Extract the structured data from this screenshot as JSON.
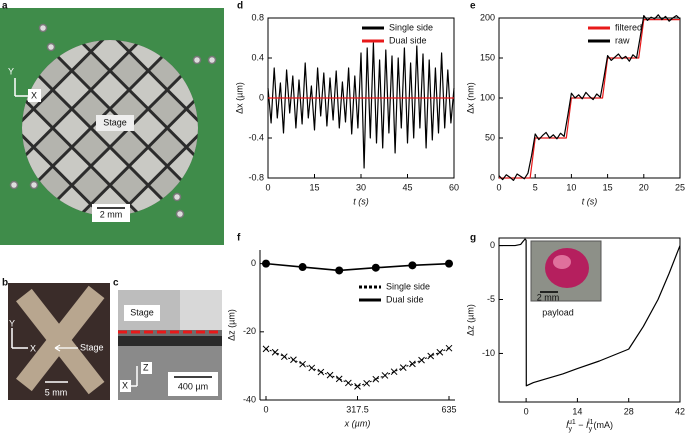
{
  "panel_labels": [
    "a",
    "b",
    "c",
    "d",
    "e",
    "f",
    "g"
  ],
  "photos": {
    "a": {
      "axis_y": "Y",
      "axis_x": "X",
      "stage": "Stage",
      "scale": "2 mm"
    },
    "b": {
      "axis_y": "Y",
      "axis_x": "X",
      "stage": "Stage",
      "scale": "5 mm"
    },
    "c": {
      "stage": "Stage",
      "axis_z": "Z",
      "axis_x": "X",
      "scale": "400 µm"
    },
    "g_inset": {
      "scale": "2 mm",
      "caption": "payload"
    }
  },
  "chart_data": [
    {
      "type": "line",
      "xlabel": "t (s)",
      "ylabel": "Δx (µm)",
      "spines": "box",
      "legend": "upper right",
      "xlim": [
        0,
        60
      ],
      "ylim": [
        -0.8,
        0.8
      ],
      "xticks": [
        0,
        15,
        30,
        45,
        60
      ],
      "yticks": [
        -0.8,
        -0.4,
        0,
        0.4,
        0.8
      ],
      "series": [
        {
          "name": "Single side",
          "color": "#000000",
          "x": [
            0,
            1,
            2,
            3,
            4,
            5,
            6,
            7,
            8,
            9,
            10,
            11,
            12,
            13,
            14,
            15,
            16,
            17,
            18,
            19,
            20,
            21,
            22,
            23,
            24,
            25,
            26,
            27,
            28,
            29,
            30,
            31,
            32,
            33,
            34,
            35,
            36,
            37,
            38,
            39,
            40,
            41,
            42,
            43,
            44,
            45,
            46,
            47,
            48,
            49,
            50,
            51,
            52,
            53,
            54,
            55,
            56,
            57,
            58,
            59,
            60
          ],
          "values": [
            0.1,
            -0.25,
            0.3,
            -0.2,
            0.15,
            -0.35,
            0.28,
            -0.15,
            0.22,
            -0.3,
            0.18,
            -0.26,
            0.35,
            -0.2,
            0.12,
            -0.32,
            0.3,
            -0.18,
            0.25,
            -0.28,
            0.2,
            -0.22,
            0.27,
            -0.3,
            0.16,
            -0.24,
            0.3,
            -0.36,
            0.22,
            -0.3,
            0.45,
            -0.7,
            0.5,
            -0.4,
            0.55,
            -0.45,
            0.38,
            -0.5,
            0.48,
            -0.35,
            0.42,
            -0.55,
            0.4,
            -0.3,
            0.5,
            -0.45,
            0.35,
            -0.4,
            0.52,
            -0.3,
            0.44,
            -0.5,
            0.38,
            -0.42,
            0.3,
            -0.35,
            0.45,
            -0.3,
            0.28,
            -0.25,
            0.1
          ]
        },
        {
          "name": "Dual side",
          "color": "#e8191a",
          "x": [
            0,
            60
          ],
          "values": [
            0,
            0
          ]
        }
      ]
    },
    {
      "type": "line",
      "xlabel": "t (s)",
      "ylabel": "Δx (nm)",
      "spines": "box",
      "legend": "upper right",
      "xlim": [
        0,
        25
      ],
      "ylim": [
        0,
        200
      ],
      "xticks": [
        0,
        5,
        10,
        15,
        20,
        25
      ],
      "yticks": [
        0,
        50,
        100,
        150,
        200
      ],
      "series": [
        {
          "name": "filtered",
          "color": "#e8191a",
          "x": [
            0,
            4.3,
            5,
            9.3,
            10,
            14.3,
            15,
            19.3,
            20,
            25
          ],
          "values": [
            0,
            0,
            50,
            50,
            100,
            100,
            150,
            150,
            198,
            198
          ]
        },
        {
          "name": "raw",
          "color": "#000000",
          "x": [
            0,
            0.5,
            1,
            1.5,
            2,
            2.5,
            3,
            3.5,
            4,
            4.5,
            5,
            5.5,
            6,
            6.5,
            7,
            7.5,
            8,
            8.5,
            9,
            9.5,
            10,
            10.5,
            11,
            11.5,
            12,
            12.5,
            13,
            13.5,
            14,
            14.5,
            15,
            15.5,
            16,
            16.5,
            17,
            17.5,
            18,
            18.5,
            19,
            19.5,
            20,
            20.5,
            21,
            21.5,
            22,
            22.5,
            23,
            23.5,
            24,
            24.5,
            25
          ],
          "values": [
            3,
            -2,
            4,
            1,
            -3,
            5,
            2,
            -1,
            6,
            28,
            55,
            48,
            53,
            57,
            50,
            54,
            49,
            56,
            52,
            78,
            106,
            100,
            104,
            99,
            107,
            102,
            98,
            105,
            101,
            126,
            153,
            147,
            151,
            155,
            149,
            152,
            146,
            154,
            150,
            176,
            203,
            197,
            201,
            199,
            204,
            198,
            202,
            196,
            200,
            203,
            199
          ]
        }
      ]
    },
    {
      "type": "line",
      "xlabel": "x (µm)",
      "ylabel": "Δz (µm)",
      "spines": "left-bottom",
      "legend": "center right",
      "xlim": [
        0,
        635
      ],
      "ylim": [
        -40,
        4
      ],
      "xticks": [
        0,
        317.5,
        635
      ],
      "yticks": [
        -40,
        -20,
        0
      ],
      "series": [
        {
          "name": "Single side",
          "color": "#000000",
          "marker": "x",
          "dash": "dotted",
          "x": [
            0,
            31.75,
            63.5,
            95.25,
            127,
            158.75,
            190.5,
            222.25,
            254,
            285.75,
            317.5,
            349.25,
            381,
            412.75,
            444.5,
            476.25,
            508,
            539.75,
            571.5,
            603.25,
            635
          ],
          "values": [
            -25,
            -26,
            -27.3,
            -28.2,
            -29.5,
            -30.6,
            -31.8,
            -32.7,
            -33.8,
            -35,
            -36,
            -35.1,
            -33.9,
            -32.8,
            -31.7,
            -30.5,
            -29.4,
            -28.3,
            -27.1,
            -26,
            -24.8
          ]
        },
        {
          "name": "Dual side",
          "color": "#000000",
          "marker": "o",
          "dash": "solid",
          "x": [
            0,
            127,
            254,
            381,
            508,
            635
          ],
          "values": [
            0,
            -1,
            -2,
            -1.2,
            -0.5,
            0
          ]
        }
      ]
    },
    {
      "type": "line",
      "xlabel_parts": [
        "I",
        "y",
        "u1",
        " − ",
        "I",
        "y",
        "l1",
        "(mA)"
      ],
      "ylabel": "Δz (µm)",
      "spines": "box",
      "xlim": [
        -7.4,
        42
      ],
      "ylim": [
        -14.5,
        0.7
      ],
      "xticks": [
        0,
        14,
        28,
        42
      ],
      "yticks": [
        -10,
        -5,
        0
      ],
      "series": [
        {
          "color": "#000000",
          "x": [
            -7.4,
            -5,
            -3,
            -1.5,
            -0.8,
            -0.3,
            0,
            0.05,
            2,
            5,
            10,
            14,
            20,
            28,
            32,
            36,
            39,
            42
          ],
          "values": [
            0,
            0,
            0,
            0.1,
            0.4,
            0.6,
            0.5,
            -13,
            -12.7,
            -12.4,
            -11.9,
            -11.4,
            -10.7,
            -9.6,
            -7.5,
            -5,
            -2.6,
            0
          ]
        }
      ]
    }
  ]
}
